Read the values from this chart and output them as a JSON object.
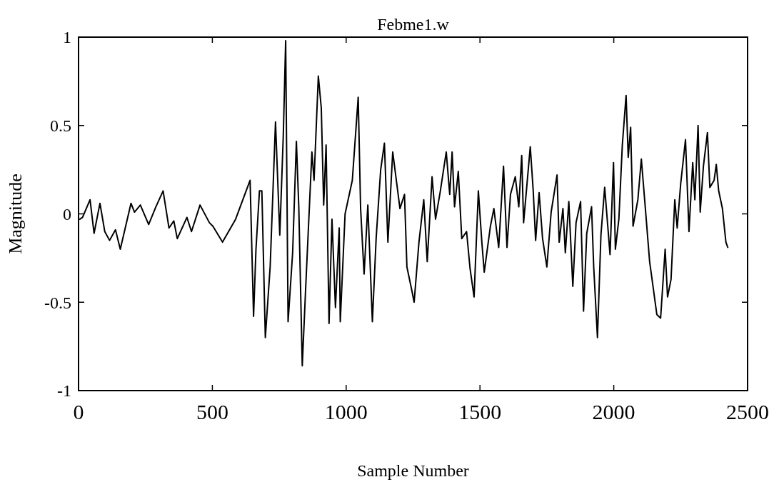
{
  "chart_data": {
    "type": "line",
    "title": "Febme1.w",
    "xlabel": "Sample Number",
    "ylabel": "Magnitude",
    "xlim": [
      0,
      2500
    ],
    "ylim": [
      -1,
      1
    ],
    "xticks": [
      0,
      500,
      1000,
      1500,
      2000,
      2500
    ],
    "yticks": [
      -1,
      {
        "value": -0.5,
        "label": "-0.5"
      },
      0,
      {
        "value": 0.5,
        "label": "0.5"
      },
      1
    ],
    "grid": false,
    "series": [
      {
        "color": "#000000",
        "x": [
          5,
          15,
          43,
          58,
          80,
          98,
          116,
          138,
          156,
          196,
          209,
          231,
          262,
          289,
          316,
          338,
          356,
          369,
          405,
          422,
          454,
          489,
          502,
          538,
          587,
          614,
          641,
          654,
          663,
          676,
          685,
          698,
          716,
          736,
          752,
          765,
          774,
          783,
          800,
          814,
          823,
          836,
          849,
          872,
          880,
          896,
          907,
          916,
          925,
          936,
          947,
          960,
          974,
          978,
          996,
          1023,
          1045,
          1054,
          1067,
          1081,
          1098,
          1112,
          1129,
          1143,
          1156,
          1174,
          1201,
          1218,
          1227,
          1245,
          1254,
          1272,
          1290,
          1303,
          1321,
          1334,
          1352,
          1374,
          1387,
          1396,
          1405,
          1419,
          1432,
          1450,
          1463,
          1478,
          1494,
          1507,
          1516,
          1539,
          1552,
          1570,
          1588,
          1601,
          1614,
          1632,
          1645,
          1656,
          1663,
          1688,
          1699,
          1708,
          1721,
          1734,
          1750,
          1766,
          1788,
          1796,
          1810,
          1819,
          1832,
          1847,
          1859,
          1876,
          1887,
          1899,
          1917,
          1925,
          1939,
          1952,
          1966,
          1986,
          1999,
          2006,
          2019,
          2032,
          2046,
          2054,
          2063,
          2072,
          2090,
          2103,
          2117,
          2134,
          2161,
          2175,
          2192,
          2201,
          2214,
          2228,
          2237,
          2250,
          2268,
          2281,
          2295,
          2303,
          2315,
          2323,
          2335,
          2350,
          2359,
          2375,
          2383,
          2392,
          2406,
          2419,
          2426
        ],
        "values": [
          -0.03,
          -0.02,
          0.08,
          -0.11,
          0.06,
          -0.1,
          -0.15,
          -0.09,
          -0.2,
          0.06,
          0.01,
          0.05,
          -0.06,
          0.04,
          0.13,
          -0.08,
          -0.04,
          -0.14,
          -0.02,
          -0.1,
          0.05,
          -0.05,
          -0.07,
          -0.16,
          -0.03,
          0.08,
          0.19,
          -0.58,
          -0.2,
          0.13,
          0.13,
          -0.7,
          -0.3,
          0.52,
          -0.12,
          0.44,
          0.98,
          -0.61,
          -0.22,
          0.41,
          0.04,
          -0.86,
          -0.41,
          0.35,
          0.19,
          0.78,
          0.6,
          0.05,
          0.39,
          -0.62,
          -0.03,
          -0.53,
          -0.08,
          -0.61,
          0.0,
          0.19,
          0.66,
          0.03,
          -0.34,
          0.05,
          -0.61,
          -0.14,
          0.25,
          0.4,
          -0.16,
          0.35,
          0.03,
          0.11,
          -0.3,
          -0.43,
          -0.5,
          -0.16,
          0.08,
          -0.27,
          0.21,
          -0.03,
          0.13,
          0.35,
          0.11,
          0.35,
          0.04,
          0.24,
          -0.14,
          -0.1,
          -0.31,
          -0.47,
          0.13,
          -0.16,
          -0.33,
          -0.07,
          0.03,
          -0.19,
          0.27,
          -0.19,
          0.11,
          0.21,
          0.04,
          0.33,
          -0.05,
          0.38,
          0.13,
          -0.15,
          0.12,
          -0.14,
          -0.3,
          0.01,
          0.22,
          -0.16,
          0.03,
          -0.22,
          0.07,
          -0.41,
          -0.05,
          0.07,
          -0.55,
          -0.11,
          0.04,
          -0.3,
          -0.7,
          -0.12,
          0.15,
          -0.23,
          0.29,
          -0.2,
          -0.03,
          0.39,
          0.67,
          0.32,
          0.49,
          -0.07,
          0.08,
          0.31,
          0.05,
          -0.27,
          -0.57,
          -0.59,
          -0.2,
          -0.47,
          -0.37,
          0.08,
          -0.08,
          0.17,
          0.42,
          -0.1,
          0.29,
          0.08,
          0.5,
          0.01,
          0.27,
          0.46,
          0.15,
          0.19,
          0.28,
          0.13,
          0.03,
          -0.16,
          -0.19
        ]
      }
    ]
  }
}
